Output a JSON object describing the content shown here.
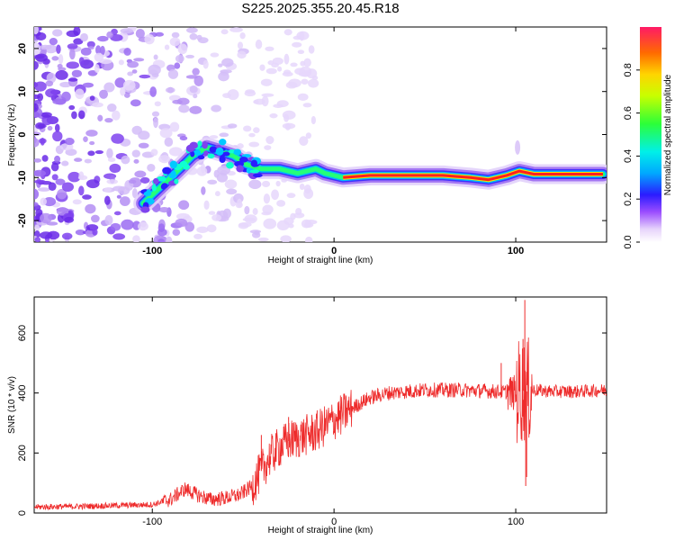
{
  "title": "S225.2025.355.20.45.R18",
  "colors": {
    "line": "#ee2b2b",
    "axis": "#000000",
    "background": "#ffffff",
    "spectrogram_outer": "#9b6cf2",
    "spectrogram_core": "#ff1f1f"
  },
  "chart_data": [
    {
      "id": "spectrogram",
      "type": "heatmap",
      "xlabel": "Height of straight line (km)",
      "ylabel": "Frequency (Hz)",
      "xlim": [
        -165,
        150
      ],
      "ylim": [
        -25,
        25
      ],
      "xticks": [
        -100,
        0,
        100
      ],
      "yticks": [
        -20,
        -10,
        0,
        10,
        20
      ],
      "xtick_labels": [
        "-100",
        "0",
        "100"
      ],
      "ytick_labels": [
        "-20",
        "-10",
        "0",
        "10",
        "20"
      ],
      "colorbar": {
        "label": "Normalized spectral amplitude",
        "range": [
          0,
          1
        ],
        "ticks": [
          0.0,
          0.2,
          0.4,
          0.6,
          0.8
        ],
        "tick_labels": [
          "0.0",
          "0.2",
          "0.4",
          "0.6",
          "0.8"
        ]
      },
      "ridge": {
        "description_points_km_hz": [
          [
            -105,
            -16
          ],
          [
            -95,
            -12
          ],
          [
            -85,
            -8
          ],
          [
            -78,
            -5
          ],
          [
            -70,
            -3
          ],
          [
            -62,
            -4
          ],
          [
            -55,
            -5
          ],
          [
            -48,
            -7
          ],
          [
            -40,
            -8
          ],
          [
            -30,
            -8
          ],
          [
            -20,
            -9
          ],
          [
            -10,
            -8
          ],
          [
            -5,
            -9
          ],
          [
            5,
            -10
          ],
          [
            20,
            -9.5
          ],
          [
            40,
            -9.5
          ],
          [
            60,
            -9.5
          ],
          [
            75,
            -10
          ],
          [
            85,
            -10.5
          ],
          [
            95,
            -9.5
          ],
          [
            102,
            -8.5
          ],
          [
            110,
            -9.2
          ],
          [
            130,
            -9.2
          ],
          [
            148,
            -9.2
          ]
        ],
        "strong_from_km": 5,
        "strong_to_km": 148
      }
    },
    {
      "id": "snr",
      "type": "line",
      "xlabel": "Height of straight line (km)",
      "ylabel": "SNR (10 * v/v)",
      "xlim": [
        -165,
        150
      ],
      "ylim": [
        0,
        720
      ],
      "xticks": [
        -100,
        0,
        100
      ],
      "yticks": [
        0,
        200,
        400,
        600
      ],
      "xtick_labels": [
        "-100",
        "0",
        "100"
      ],
      "ytick_labels": [
        "0",
        "200",
        "400",
        "600"
      ],
      "series": [
        {
          "name": "SNR",
          "x": [
            -165,
            -140,
            -120,
            -100,
            -90,
            -82,
            -75,
            -68,
            -60,
            -52,
            -45,
            -40,
            -35,
            -30,
            -25,
            -20,
            -10,
            0,
            10,
            20,
            30,
            50,
            70,
            90,
            100,
            103,
            105,
            107,
            110,
            120,
            135,
            150
          ],
          "y": [
            20,
            22,
            25,
            28,
            45,
            80,
            60,
            45,
            50,
            60,
            90,
            140,
            190,
            220,
            240,
            250,
            270,
            310,
            350,
            385,
            400,
            410,
            410,
            405,
            400,
            410,
            405,
            405,
            410,
            405,
            405,
            410
          ],
          "spikes": [
            {
              "x": -40,
              "y": 260
            },
            {
              "x": -25,
              "y": 320
            },
            {
              "x": 92,
              "y": 500
            },
            {
              "x": 104,
              "y": 580
            },
            {
              "x": 105,
              "y": 710
            },
            {
              "x": 105.5,
              "y": 90
            },
            {
              "x": 106,
              "y": 120
            }
          ]
        }
      ]
    }
  ]
}
